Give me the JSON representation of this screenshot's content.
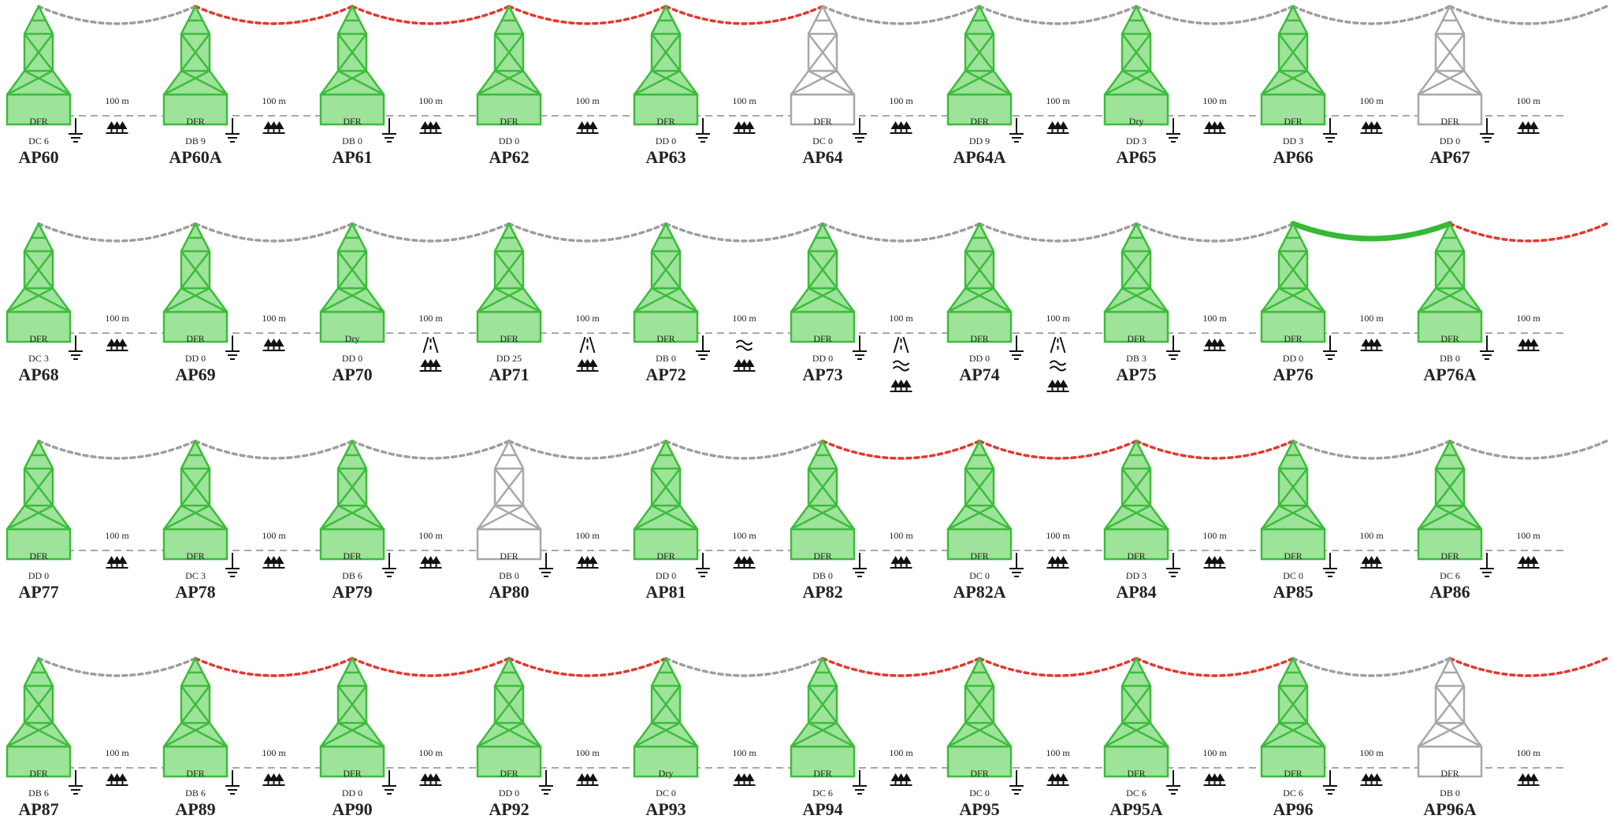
{
  "span_length_label": "100 m",
  "colors": {
    "tower_active_fill": "#9ee39a",
    "tower_active_stroke": "#3cbc3c",
    "tower_inactive_fill": "#ffffff",
    "tower_inactive_stroke": "#a8a8a8",
    "conductor_gray": "#9e9e9e",
    "conductor_red": "#e0392f",
    "conductor_green": "#36b936",
    "ground_line": "#a8a8a8",
    "icon": "#111111"
  },
  "rows": [
    {
      "towers": [
        {
          "name": "AP60",
          "type": "DFR",
          "code": "DC 6",
          "status": "active",
          "ground": true
        },
        {
          "name": "AP60A",
          "type": "DFR",
          "code": "DB 9",
          "status": "active",
          "ground": true
        },
        {
          "name": "AP61",
          "type": "DFR",
          "code": "DB 0",
          "status": "active",
          "ground": true
        },
        {
          "name": "AP62",
          "type": "DFR",
          "code": "DD 0",
          "status": "active",
          "ground": false
        },
        {
          "name": "AP63",
          "type": "DFR",
          "code": "DD 0",
          "status": "active",
          "ground": true
        },
        {
          "name": "AP64",
          "type": "DFR",
          "code": "DC 0",
          "status": "inactive",
          "ground": true
        },
        {
          "name": "AP64A",
          "type": "DFR",
          "code": "DD 9",
          "status": "active",
          "ground": true
        },
        {
          "name": "AP65",
          "type": "Dry",
          "code": "DD 3",
          "status": "active",
          "ground": true
        },
        {
          "name": "AP66",
          "type": "DFR",
          "code": "DD 3",
          "status": "active",
          "ground": true
        },
        {
          "name": "AP67",
          "type": "DFR",
          "code": "DD 0",
          "status": "inactive",
          "ground": true
        }
      ],
      "spans": [
        {
          "cable": "gray",
          "icons": [
            "trees-icon"
          ]
        },
        {
          "cable": "red",
          "icons": [
            "trees-icon"
          ]
        },
        {
          "cable": "red",
          "icons": [
            "trees-icon"
          ]
        },
        {
          "cable": "red",
          "icons": [
            "trees-icon"
          ]
        },
        {
          "cable": "red",
          "icons": [
            "trees-icon"
          ]
        },
        {
          "cable": "gray",
          "icons": [
            "trees-icon"
          ]
        },
        {
          "cable": "gray",
          "icons": [
            "trees-icon"
          ]
        },
        {
          "cable": "gray",
          "icons": [
            "trees-icon"
          ]
        },
        {
          "cable": "gray",
          "icons": [
            "trees-icon"
          ]
        },
        {
          "cable": "gray",
          "icons": [
            "trees-icon"
          ]
        }
      ]
    },
    {
      "towers": [
        {
          "name": "AP68",
          "type": "DFR",
          "code": "DC 3",
          "status": "active",
          "ground": true
        },
        {
          "name": "AP69",
          "type": "DFR",
          "code": "DD 0",
          "status": "active",
          "ground": true
        },
        {
          "name": "AP70",
          "type": "Dry",
          "code": "DD 0",
          "status": "active",
          "ground": false
        },
        {
          "name": "AP71",
          "type": "DFR",
          "code": "DD 25",
          "status": "active",
          "ground": false
        },
        {
          "name": "AP72",
          "type": "DFR",
          "code": "DB 0",
          "status": "active",
          "ground": true
        },
        {
          "name": "AP73",
          "type": "DFR",
          "code": "DD 0",
          "status": "active",
          "ground": true
        },
        {
          "name": "AP74",
          "type": "DFR",
          "code": "DD 0",
          "status": "active",
          "ground": true
        },
        {
          "name": "AP75",
          "type": "DFR",
          "code": "DB 3",
          "status": "active",
          "ground": true
        },
        {
          "name": "AP76",
          "type": "DFR",
          "code": "DD 0",
          "status": "active",
          "ground": true
        },
        {
          "name": "AP76A",
          "type": "DFR",
          "code": "DB 0",
          "status": "active",
          "ground": true
        }
      ],
      "spans": [
        {
          "cable": "gray",
          "icons": [
            "trees-icon"
          ]
        },
        {
          "cable": "gray",
          "icons": [
            "trees-icon"
          ]
        },
        {
          "cable": "gray",
          "icons": [
            "road-icon",
            "trees-icon"
          ]
        },
        {
          "cable": "gray",
          "icons": [
            "road-icon",
            "trees-icon"
          ]
        },
        {
          "cable": "gray",
          "icons": [
            "water-icon",
            "trees-icon"
          ]
        },
        {
          "cable": "gray",
          "icons": [
            "road-icon",
            "water-icon",
            "trees-icon"
          ]
        },
        {
          "cable": "gray",
          "icons": [
            "road-icon",
            "water-icon",
            "trees-icon"
          ]
        },
        {
          "cable": "gray",
          "icons": [
            "trees-icon"
          ]
        },
        {
          "cable": "green",
          "icons": [
            "trees-icon"
          ]
        },
        {
          "cable": "red",
          "icons": [
            "trees-icon"
          ]
        }
      ]
    },
    {
      "towers": [
        {
          "name": "AP77",
          "type": "DFR",
          "code": "DD 0",
          "status": "active",
          "ground": false
        },
        {
          "name": "AP78",
          "type": "DFR",
          "code": "DC 3",
          "status": "active",
          "ground": true
        },
        {
          "name": "AP79",
          "type": "DFR",
          "code": "DB 6",
          "status": "active",
          "ground": true
        },
        {
          "name": "AP80",
          "type": "DFR",
          "code": "DB 0",
          "status": "inactive",
          "ground": true
        },
        {
          "name": "AP81",
          "type": "DFR",
          "code": "DD 0",
          "status": "active",
          "ground": true
        },
        {
          "name": "AP82",
          "type": "DFR",
          "code": "DB 0",
          "status": "active",
          "ground": true
        },
        {
          "name": "AP82A",
          "type": "DFR",
          "code": "DC 0",
          "status": "active",
          "ground": true
        },
        {
          "name": "AP84",
          "type": "DFR",
          "code": "DD 3",
          "status": "active",
          "ground": true
        },
        {
          "name": "AP85",
          "type": "DFR",
          "code": "DC 0",
          "status": "active",
          "ground": true
        },
        {
          "name": "AP86",
          "type": "DFR",
          "code": "DC 6",
          "status": "active",
          "ground": true
        }
      ],
      "spans": [
        {
          "cable": "gray",
          "icons": [
            "trees-icon"
          ]
        },
        {
          "cable": "gray",
          "icons": [
            "trees-icon"
          ]
        },
        {
          "cable": "gray",
          "icons": [
            "trees-icon"
          ]
        },
        {
          "cable": "gray",
          "icons": [
            "trees-icon"
          ]
        },
        {
          "cable": "gray",
          "icons": [
            "trees-icon"
          ]
        },
        {
          "cable": "red",
          "icons": [
            "trees-icon"
          ]
        },
        {
          "cable": "red",
          "icons": [
            "trees-icon"
          ]
        },
        {
          "cable": "red",
          "icons": [
            "trees-icon"
          ]
        },
        {
          "cable": "gray",
          "icons": [
            "trees-icon"
          ]
        },
        {
          "cable": "gray",
          "icons": [
            "trees-icon"
          ]
        }
      ]
    },
    {
      "towers": [
        {
          "name": "AP87",
          "type": "DFR",
          "code": "DB 6",
          "status": "active",
          "ground": true
        },
        {
          "name": "AP89",
          "type": "DFR",
          "code": "DB 6",
          "status": "active",
          "ground": true
        },
        {
          "name": "AP90",
          "type": "DFR",
          "code": "DD 0",
          "status": "active",
          "ground": true
        },
        {
          "name": "AP92",
          "type": "DFR",
          "code": "DD 0",
          "status": "active",
          "ground": true
        },
        {
          "name": "AP93",
          "type": "Dry",
          "code": "DC 0",
          "status": "active",
          "ground": false
        },
        {
          "name": "AP94",
          "type": "DFR",
          "code": "DC 6",
          "status": "active",
          "ground": true
        },
        {
          "name": "AP95",
          "type": "DFR",
          "code": "DC 0",
          "status": "active",
          "ground": true
        },
        {
          "name": "AP95A",
          "type": "DFR",
          "code": "DC 6",
          "status": "active",
          "ground": true
        },
        {
          "name": "AP96",
          "type": "DFR",
          "code": "DC 6",
          "status": "active",
          "ground": true
        },
        {
          "name": "AP96A",
          "type": "DFR",
          "code": "DB 0",
          "status": "inactive",
          "ground": false
        }
      ],
      "spans": [
        {
          "cable": "gray",
          "icons": [
            "trees-icon"
          ]
        },
        {
          "cable": "red",
          "icons": [
            "trees-icon"
          ]
        },
        {
          "cable": "red",
          "icons": [
            "trees-icon"
          ]
        },
        {
          "cable": "red",
          "icons": [
            "trees-icon"
          ]
        },
        {
          "cable": "gray",
          "icons": [
            "trees-icon"
          ]
        },
        {
          "cable": "red",
          "icons": [
            "trees-icon"
          ]
        },
        {
          "cable": "red",
          "icons": [
            "trees-icon"
          ]
        },
        {
          "cable": "red",
          "icons": [
            "trees-icon"
          ]
        },
        {
          "cable": "gray",
          "icons": [
            "trees-icon"
          ]
        },
        {
          "cable": "red",
          "icons": [
            "trees-icon"
          ]
        }
      ]
    }
  ]
}
